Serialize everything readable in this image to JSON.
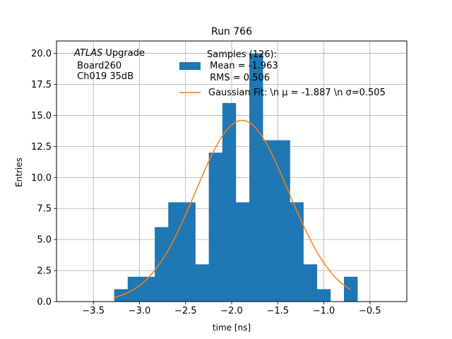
{
  "chart_data": {
    "type": "bar",
    "title": "Run 766",
    "xlabel": "time [ns]",
    "ylabel": "Entries",
    "xlim": [
      -3.9,
      -0.1
    ],
    "ylim": [
      0,
      21
    ],
    "grid": true,
    "xticks": [
      -3.5,
      -3.0,
      -2.5,
      -2.0,
      -1.5,
      -1.0,
      -0.5
    ],
    "xtick_labels": [
      "−3.5",
      "−3.0",
      "−2.5",
      "−2.0",
      "−1.5",
      "−1.0",
      "−0.5"
    ],
    "yticks": [
      0,
      2.5,
      5,
      7.5,
      10,
      12.5,
      15,
      17.5,
      20
    ],
    "ytick_labels": [
      "0.0",
      "2.5",
      "5.0",
      "7.5",
      "10.0",
      "12.5",
      "15.0",
      "17.5",
      "20.0"
    ],
    "annotation": {
      "line1_italic": "ATLAS",
      "line1_rest": " Upgrade",
      "line2": " Board260",
      "line3": " Ch019 35dB"
    },
    "legend": {
      "position": "top-right",
      "hist_label_lines": [
        "Samples (126):",
        " Mean = -1.963",
        " RMS = 0.506"
      ],
      "fit_label": "Gaussian Fit: \\n μ = -1.887 \\n σ=0.505"
    },
    "histogram": {
      "name": "Samples",
      "color": "#1f77b4",
      "bin_width": 0.1466,
      "bin_edges_start": -3.274,
      "counts": [
        1,
        2,
        2,
        6,
        8,
        8,
        3,
        12,
        16,
        8,
        20,
        13,
        13,
        8,
        3,
        1,
        0,
        2
      ]
    },
    "fit": {
      "name": "Gaussian Fit",
      "color": "#ff7f0e",
      "mu": -1.887,
      "sigma": 0.505,
      "amplitude": 14.6,
      "x_range": [
        -3.274,
        -0.714
      ]
    },
    "colors": {
      "grid": "#b0b0b0",
      "axes": "#000000"
    }
  }
}
